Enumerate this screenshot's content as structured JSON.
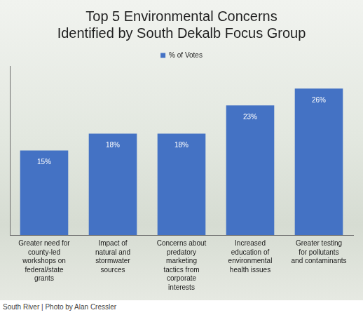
{
  "chart_data": {
    "type": "bar",
    "title": "Top 5 Environmental Concerns Identified by South Dekalb Focus Group",
    "categories": [
      "Greater need for county-led workshops on federal/state grants",
      "Impact of natural and stormwater sources",
      "Concerns about predatory marketing tactics from corporate interests",
      "Increased education of environmental health issues",
      "Greater testing for pollutants and contaminants"
    ],
    "series": [
      {
        "name": "% of Votes",
        "color": "#4472c4",
        "values": [
          15,
          18,
          18,
          23,
          26
        ],
        "value_labels": [
          "15%",
          "18%",
          "18%",
          "23%",
          "26%"
        ]
      }
    ],
    "ylim": [
      0,
      30
    ],
    "grid": false,
    "legend": "top",
    "data_labels": true,
    "tick_labels": "x",
    "caption": "South River | Photo by Alan Cressler"
  }
}
